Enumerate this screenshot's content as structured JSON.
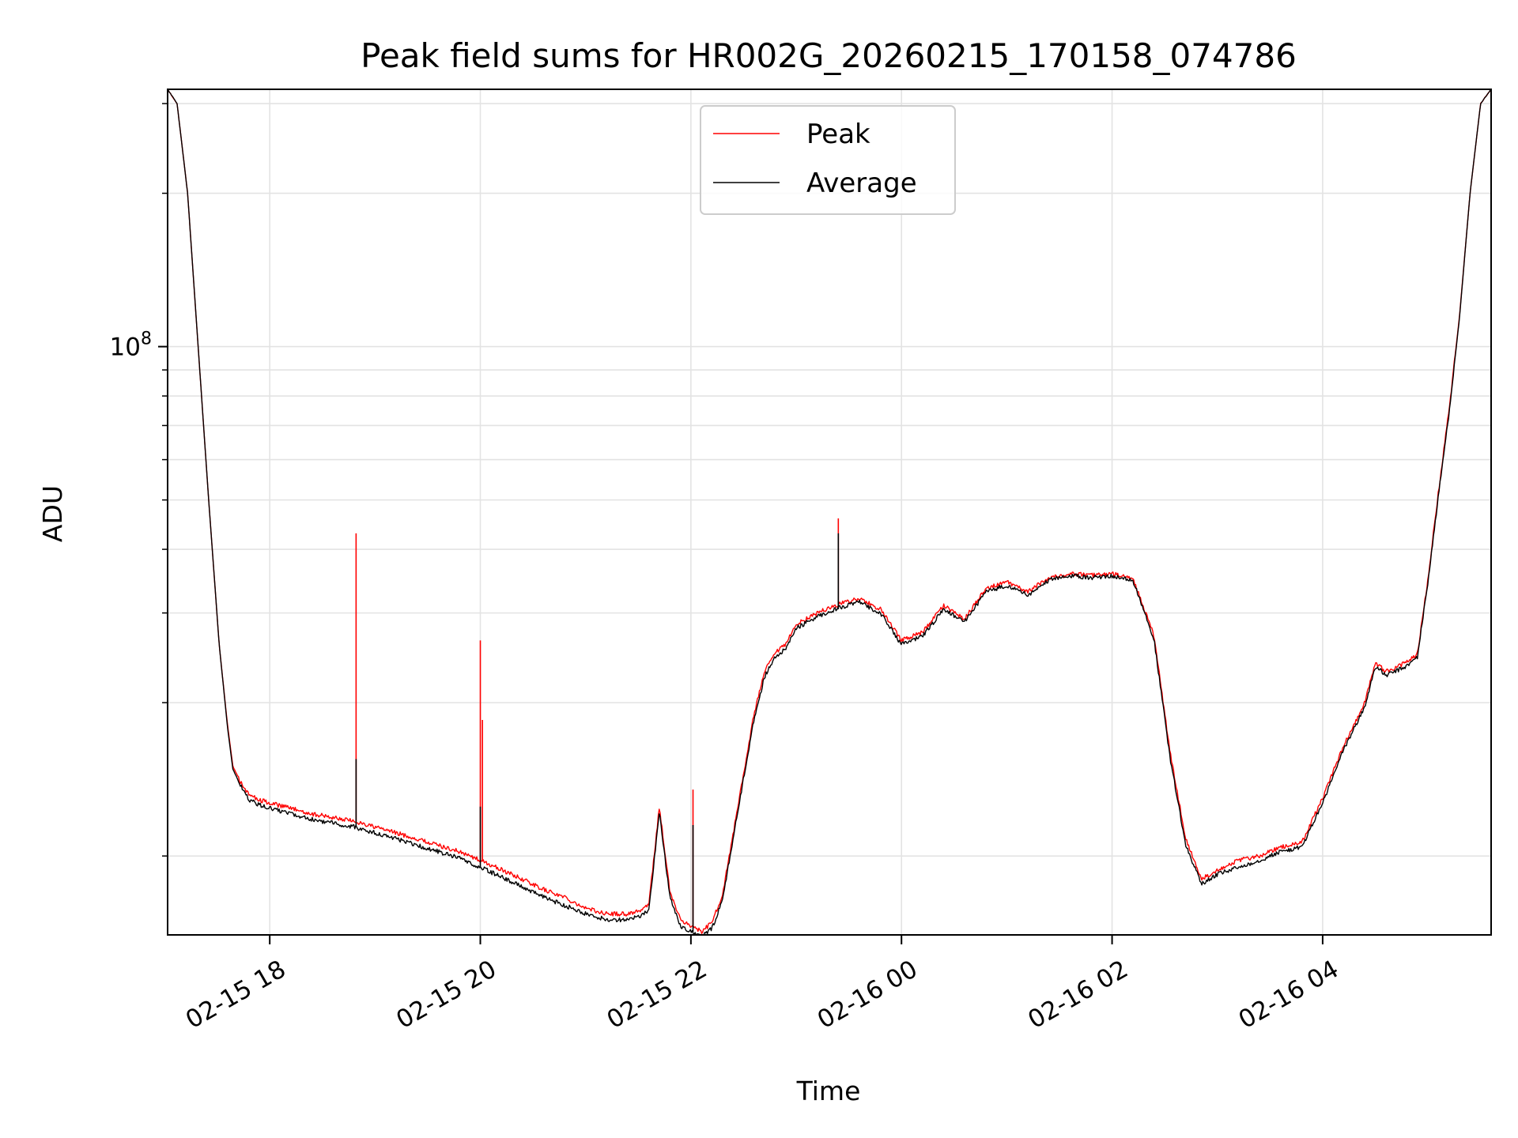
{
  "chart_data": {
    "type": "line",
    "title": "Peak field sums for HR002G_20260215_170158_074786",
    "xlabel": "Time",
    "ylabel": "ADU",
    "y_scale": "log",
    "ylim": [
      7000000.0,
      320000000.0
    ],
    "xlim_hours": [
      17.03,
      29.6
    ],
    "x_ticks": [
      {
        "hour": 18,
        "label": "02-15 18"
      },
      {
        "hour": 20,
        "label": "02-15 20"
      },
      {
        "hour": 22,
        "label": "02-15 22"
      },
      {
        "hour": 24,
        "label": "02-16 00"
      },
      {
        "hour": 26,
        "label": "02-16 02"
      },
      {
        "hour": 28,
        "label": "02-16 04"
      }
    ],
    "y_major_ticks": [
      {
        "value": 100000000,
        "base": "10",
        "exponent": "8"
      }
    ],
    "y_minor_ticks": [
      10000000,
      20000000,
      30000000,
      40000000,
      50000000,
      60000000,
      70000000,
      80000000,
      90000000,
      200000000,
      300000000
    ],
    "grid": true,
    "legend_position": "top-center",
    "series": [
      {
        "name": "Peak",
        "color": "#ff0000",
        "x_hours": [
          17.03,
          17.12,
          17.22,
          17.32,
          17.42,
          17.52,
          17.6,
          17.65,
          17.72,
          17.8,
          17.9,
          18.0,
          18.2,
          18.4,
          18.6,
          18.8,
          19.0,
          19.2,
          19.4,
          19.6,
          19.8,
          20.0,
          20.2,
          20.4,
          20.6,
          20.8,
          21.0,
          21.2,
          21.4,
          21.5,
          21.6,
          21.7,
          21.8,
          21.9,
          22.0,
          22.1,
          22.2,
          22.3,
          22.4,
          22.5,
          22.6,
          22.7,
          22.8,
          22.9,
          23.0,
          23.2,
          23.4,
          23.6,
          23.8,
          24.0,
          24.1,
          24.2,
          24.4,
          24.6,
          24.8,
          25.0,
          25.2,
          25.4,
          25.6,
          25.8,
          26.0,
          26.2,
          26.4,
          26.55,
          26.7,
          26.85,
          27.0,
          27.2,
          27.4,
          27.6,
          27.8,
          28.0,
          28.2,
          28.4,
          28.5,
          28.6,
          28.8,
          28.9,
          29.0,
          29.1,
          29.2,
          29.3,
          29.4,
          29.5,
          29.6
        ],
        "values": [
          320000000.0,
          300000000.0,
          200000000.0,
          100000000.0,
          50000000.0,
          26000000.0,
          18000000.0,
          15000000.0,
          14000000.0,
          13200000.0,
          12900000.0,
          12700000.0,
          12400000.0,
          12100000.0,
          11900000.0,
          11700000.0,
          11400000.0,
          11100000.0,
          10800000.0,
          10500000.0,
          10200000.0,
          9800000.0,
          9400000.0,
          9000000.0,
          8600000.0,
          8300000.0,
          7900000.0,
          7700000.0,
          7700000.0,
          7800000.0,
          8000000.0,
          12500000.0,
          8500000.0,
          7500000.0,
          7300000.0,
          7100000.0,
          7400000.0,
          8400000.0,
          11000000.0,
          14500000.0,
          19000000.0,
          23000000.0,
          25000000.0,
          26000000.0,
          28500000.0,
          30000000.0,
          31200000.0,
          32000000.0,
          30500000.0,
          26500000.0,
          27000000.0,
          27500000.0,
          31000000.0,
          29200000.0,
          33500000.0,
          34500000.0,
          33000000.0,
          35200000.0,
          35800000.0,
          35600000.0,
          35800000.0,
          35000000.0,
          27000000.0,
          16000000.0,
          10800000.0,
          9000000.0,
          9400000.0,
          9800000.0,
          10000000.0,
          10400000.0,
          10600000.0,
          13000000.0,
          16500000.0,
          20000000.0,
          24000000.0,
          23000000.0,
          24000000.0,
          25000000.0,
          35000000.0,
          52000000.0,
          75000000.0,
          115000000.0,
          200000000.0,
          300000000.0,
          320000000.0
        ],
        "spikes": [
          {
            "hour": 18.82,
            "value": 43000000.0,
            "base": 11700000.0
          },
          {
            "hour": 20.0,
            "value": 26500000.0,
            "base": 9800000.0
          },
          {
            "hour": 20.02,
            "value": 18500000.0,
            "base": 9800000.0
          },
          {
            "hour": 22.02,
            "value": 13500000.0,
            "base": 7300000.0
          },
          {
            "hour": 23.4,
            "value": 46000000.0,
            "base": 31000000.0
          }
        ]
      },
      {
        "name": "Average",
        "color": "#000000",
        "x_hours": [
          17.03,
          17.12,
          17.22,
          17.32,
          17.42,
          17.52,
          17.6,
          17.65,
          17.72,
          17.8,
          17.9,
          18.0,
          18.2,
          18.4,
          18.6,
          18.8,
          19.0,
          19.2,
          19.4,
          19.6,
          19.8,
          20.0,
          20.2,
          20.4,
          20.6,
          20.8,
          21.0,
          21.2,
          21.4,
          21.5,
          21.6,
          21.7,
          21.8,
          21.9,
          22.0,
          22.1,
          22.2,
          22.3,
          22.4,
          22.5,
          22.6,
          22.7,
          22.8,
          22.9,
          23.0,
          23.2,
          23.4,
          23.6,
          23.8,
          24.0,
          24.1,
          24.2,
          24.4,
          24.6,
          24.8,
          25.0,
          25.2,
          25.4,
          25.6,
          25.8,
          26.0,
          26.2,
          26.4,
          26.55,
          26.7,
          26.85,
          27.0,
          27.2,
          27.4,
          27.6,
          27.8,
          28.0,
          28.2,
          28.4,
          28.5,
          28.6,
          28.8,
          28.9,
          29.0,
          29.1,
          29.2,
          29.3,
          29.4,
          29.5,
          29.6
        ],
        "values": [
          320000000.0,
          300000000.0,
          200000000.0,
          100000000.0,
          50000000.0,
          26000000.0,
          17800000.0,
          14800000.0,
          13800000.0,
          12900000.0,
          12600000.0,
          12400000.0,
          12100000.0,
          11800000.0,
          11600000.0,
          11400000.0,
          11100000.0,
          10800000.0,
          10500000.0,
          10200000.0,
          9900000.0,
          9500000.0,
          9100000.0,
          8700000.0,
          8300000.0,
          8000000.0,
          7700000.0,
          7500000.0,
          7500000.0,
          7600000.0,
          7800000.0,
          12200000.0,
          8300000.0,
          7300000.0,
          7100000.0,
          6950000.0,
          7200000.0,
          8200000.0,
          10800000.0,
          14200000.0,
          18600000.0,
          22500000.0,
          24500000.0,
          25500000.0,
          28000000.0,
          29500000.0,
          30700000.0,
          31500000.0,
          30000000.0,
          26000000.0,
          26500000.0,
          27000000.0,
          30500000.0,
          28800000.0,
          33000000.0,
          34000000.0,
          32500000.0,
          34800000.0,
          35500000.0,
          35200000.0,
          35500000.0,
          34700000.0,
          26500000.0,
          15600000.0,
          10500000.0,
          8800000.0,
          9200000.0,
          9500000.0,
          9800000.0,
          10200000.0,
          10400000.0,
          12700000.0,
          16200000.0,
          19600000.0,
          23600000.0,
          22600000.0,
          23600000.0,
          24600000.0,
          34500000.0,
          51000000.0,
          74000000.0,
          114000000.0,
          200000000.0,
          300000000.0,
          320000000.0
        ],
        "spikes": [
          {
            "hour": 18.82,
            "value": 15500000.0,
            "base": 11400000.0
          },
          {
            "hour": 20.0,
            "value": 12500000.0,
            "base": 9500000.0
          },
          {
            "hour": 22.02,
            "value": 11500000.0,
            "base": 7100000.0
          },
          {
            "hour": 23.4,
            "value": 43000000.0,
            "base": 30500000.0
          }
        ]
      }
    ]
  }
}
